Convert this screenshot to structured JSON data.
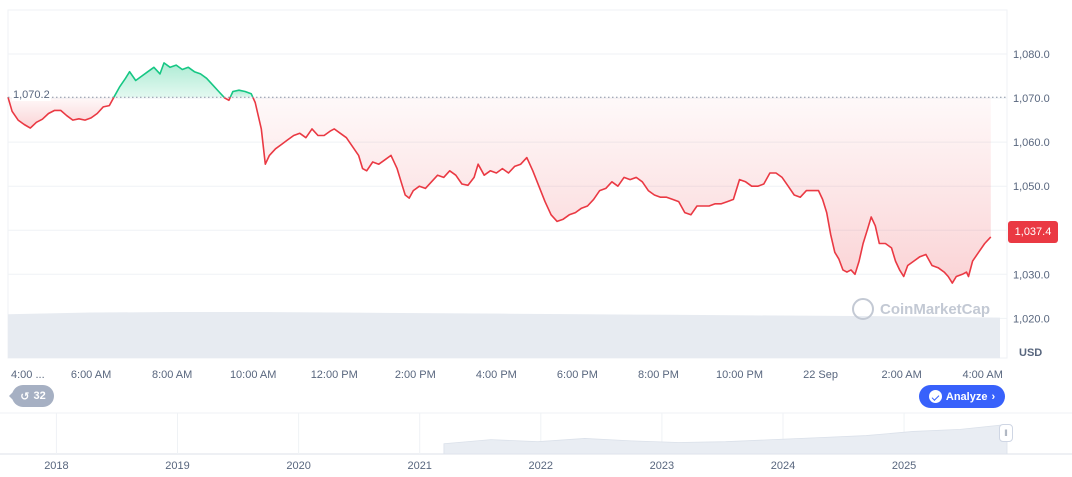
{
  "chart_data": {
    "type": "line",
    "y_axis": {
      "ticks": [
        "1,020.0",
        "1,030.0",
        "1,040.0",
        "1,050.0",
        "1,060.0",
        "1,070.0",
        "1,080.0"
      ],
      "tick_values": [
        1020,
        1030,
        1040,
        1050,
        1060,
        1070,
        1080
      ],
      "range": [
        1011,
        1090
      ],
      "unit_label": "USD"
    },
    "x_axis": {
      "ticks": [
        "4:00 ...",
        "6:00 AM",
        "8:00 AM",
        "10:00 AM",
        "12:00 PM",
        "2:00 PM",
        "4:00 PM",
        "6:00 PM",
        "8:00 PM",
        "10:00 PM",
        "22 Sep",
        "2:00 AM",
        "4:00 AM"
      ],
      "tick_hours": [
        4,
        6,
        8,
        10,
        12,
        14,
        16,
        18,
        20,
        22,
        24,
        26,
        28
      ],
      "range_hours": [
        3.95,
        28.6
      ]
    },
    "reference": {
      "value": 1070.2,
      "label": "1,070.2"
    },
    "current": {
      "value": 1037.4,
      "label": "1,037.4"
    },
    "series": [
      {
        "above_color": "#16c784",
        "below_color": "#ea3943",
        "points": [
          [
            3.95,
            1070.2
          ],
          [
            4.05,
            1067
          ],
          [
            4.2,
            1065
          ],
          [
            4.35,
            1064
          ],
          [
            4.5,
            1063.2
          ],
          [
            4.65,
            1064.5
          ],
          [
            4.8,
            1065.2
          ],
          [
            4.95,
            1066.5
          ],
          [
            5.1,
            1067.2
          ],
          [
            5.25,
            1067.2
          ],
          [
            5.4,
            1066
          ],
          [
            5.55,
            1065
          ],
          [
            5.7,
            1065.3
          ],
          [
            5.85,
            1065
          ],
          [
            6.0,
            1065.5
          ],
          [
            6.15,
            1066.5
          ],
          [
            6.3,
            1068
          ],
          [
            6.45,
            1068.3
          ],
          [
            6.55,
            1070
          ],
          [
            6.7,
            1072.5
          ],
          [
            6.85,
            1074.5
          ],
          [
            6.95,
            1076
          ],
          [
            7.1,
            1074
          ],
          [
            7.25,
            1075
          ],
          [
            7.4,
            1076
          ],
          [
            7.55,
            1077
          ],
          [
            7.7,
            1075.5
          ],
          [
            7.8,
            1078
          ],
          [
            7.95,
            1077
          ],
          [
            8.1,
            1077.5
          ],
          [
            8.25,
            1076.5
          ],
          [
            8.4,
            1077
          ],
          [
            8.55,
            1076
          ],
          [
            8.7,
            1075.5
          ],
          [
            8.85,
            1074.5
          ],
          [
            9.0,
            1073
          ],
          [
            9.15,
            1071.5
          ],
          [
            9.3,
            1070
          ],
          [
            9.4,
            1069.5
          ],
          [
            9.5,
            1071.5
          ],
          [
            9.65,
            1071.8
          ],
          [
            9.8,
            1071.5
          ],
          [
            9.95,
            1071
          ],
          [
            10.05,
            1069
          ],
          [
            10.2,
            1063
          ],
          [
            10.3,
            1055
          ],
          [
            10.4,
            1057
          ],
          [
            10.55,
            1058.5
          ],
          [
            10.7,
            1059.5
          ],
          [
            10.85,
            1060.5
          ],
          [
            11.0,
            1061.5
          ],
          [
            11.15,
            1062
          ],
          [
            11.3,
            1061
          ],
          [
            11.45,
            1063
          ],
          [
            11.6,
            1061.5
          ],
          [
            11.75,
            1061.5
          ],
          [
            11.9,
            1062.5
          ],
          [
            12.0,
            1063
          ],
          [
            12.15,
            1062
          ],
          [
            12.3,
            1061
          ],
          [
            12.45,
            1059
          ],
          [
            12.6,
            1057
          ],
          [
            12.7,
            1054
          ],
          [
            12.8,
            1053.5
          ],
          [
            12.95,
            1055.5
          ],
          [
            13.1,
            1055
          ],
          [
            13.25,
            1056
          ],
          [
            13.4,
            1057
          ],
          [
            13.55,
            1054
          ],
          [
            13.65,
            1051
          ],
          [
            13.75,
            1048
          ],
          [
            13.85,
            1047.3
          ],
          [
            13.95,
            1049
          ],
          [
            14.1,
            1050
          ],
          [
            14.25,
            1049.5
          ],
          [
            14.4,
            1051
          ],
          [
            14.55,
            1052.5
          ],
          [
            14.7,
            1052
          ],
          [
            14.85,
            1053.5
          ],
          [
            15.0,
            1052.5
          ],
          [
            15.15,
            1050.5
          ],
          [
            15.3,
            1050.2
          ],
          [
            15.45,
            1052
          ],
          [
            15.55,
            1055
          ],
          [
            15.7,
            1052.5
          ],
          [
            15.85,
            1053.5
          ],
          [
            16.0,
            1053
          ],
          [
            16.15,
            1054
          ],
          [
            16.3,
            1053
          ],
          [
            16.45,
            1054.5
          ],
          [
            16.6,
            1055
          ],
          [
            16.75,
            1056.5
          ],
          [
            16.9,
            1053.5
          ],
          [
            17.05,
            1050
          ],
          [
            17.2,
            1046.5
          ],
          [
            17.35,
            1043.5
          ],
          [
            17.5,
            1042
          ],
          [
            17.65,
            1042.5
          ],
          [
            17.8,
            1043.5
          ],
          [
            17.95,
            1044
          ],
          [
            18.1,
            1045
          ],
          [
            18.25,
            1045.5
          ],
          [
            18.4,
            1047
          ],
          [
            18.55,
            1049
          ],
          [
            18.7,
            1049.5
          ],
          [
            18.85,
            1051
          ],
          [
            19.0,
            1050
          ],
          [
            19.15,
            1052
          ],
          [
            19.3,
            1051.5
          ],
          [
            19.45,
            1052
          ],
          [
            19.6,
            1051
          ],
          [
            19.75,
            1049
          ],
          [
            19.9,
            1048
          ],
          [
            20.05,
            1047.5
          ],
          [
            20.2,
            1047.5
          ],
          [
            20.35,
            1047
          ],
          [
            20.5,
            1046.5
          ],
          [
            20.65,
            1044
          ],
          [
            20.8,
            1043.5
          ],
          [
            20.95,
            1045.5
          ],
          [
            21.1,
            1045.5
          ],
          [
            21.25,
            1045.5
          ],
          [
            21.4,
            1046
          ],
          [
            21.55,
            1046
          ],
          [
            21.7,
            1046.5
          ],
          [
            21.85,
            1047
          ],
          [
            22.0,
            1051.5
          ],
          [
            22.15,
            1051
          ],
          [
            22.3,
            1050
          ],
          [
            22.45,
            1050
          ],
          [
            22.6,
            1050.5
          ],
          [
            22.75,
            1053
          ],
          [
            22.9,
            1053
          ],
          [
            23.05,
            1052
          ],
          [
            23.2,
            1050
          ],
          [
            23.35,
            1048
          ],
          [
            23.5,
            1047.5
          ],
          [
            23.65,
            1049
          ],
          [
            23.8,
            1049
          ],
          [
            23.95,
            1049
          ],
          [
            24.05,
            1047
          ],
          [
            24.15,
            1044
          ],
          [
            24.25,
            1039
          ],
          [
            24.35,
            1035
          ],
          [
            24.45,
            1033.5
          ],
          [
            24.55,
            1031
          ],
          [
            24.65,
            1030.5
          ],
          [
            24.75,
            1031
          ],
          [
            24.85,
            1030
          ],
          [
            24.95,
            1033
          ],
          [
            25.05,
            1037
          ],
          [
            25.15,
            1040
          ],
          [
            25.25,
            1043
          ],
          [
            25.35,
            1041
          ],
          [
            25.45,
            1037
          ],
          [
            25.6,
            1037
          ],
          [
            25.75,
            1036
          ],
          [
            25.85,
            1033
          ],
          [
            25.95,
            1031
          ],
          [
            26.05,
            1029.5
          ],
          [
            26.15,
            1032
          ],
          [
            26.3,
            1033
          ],
          [
            26.45,
            1034
          ],
          [
            26.6,
            1034.5
          ],
          [
            26.75,
            1032
          ],
          [
            26.9,
            1031.5
          ],
          [
            27.05,
            1030.5
          ],
          [
            27.15,
            1029.5
          ],
          [
            27.25,
            1028
          ],
          [
            27.35,
            1029.5
          ],
          [
            27.5,
            1030
          ],
          [
            27.6,
            1030.5
          ],
          [
            27.65,
            1029.5
          ],
          [
            27.75,
            1033
          ],
          [
            27.9,
            1035
          ],
          [
            28.05,
            1037
          ],
          [
            28.2,
            1038.5
          ]
        ]
      }
    ],
    "volume": {
      "color": "#e7ebf1",
      "levels": [
        0.78,
        0.81,
        0.82,
        0.82,
        0.81,
        0.8,
        0.79,
        0.78,
        0.77,
        0.76,
        0.75,
        0.74,
        0.72
      ]
    },
    "navigator": {
      "ticks": [
        "2018",
        "2019",
        "2020",
        "2021",
        "2022",
        "2023",
        "2024",
        "2025"
      ],
      "tick_years": [
        2018,
        2019,
        2020,
        2021,
        2022,
        2023,
        2024,
        2025
      ],
      "range_years": [
        2017.6,
        2025.85
      ],
      "data_start_year": 2021.2,
      "levels": [
        0.25,
        0.35,
        0.3,
        0.38,
        0.32,
        0.28,
        0.3,
        0.35,
        0.4,
        0.45,
        0.55,
        0.6,
        0.72
      ]
    },
    "grid": true,
    "legend": "none"
  },
  "ui": {
    "history_count": "32",
    "analyze_label": "Analyze",
    "watermark_text": "CoinMarketCap"
  }
}
